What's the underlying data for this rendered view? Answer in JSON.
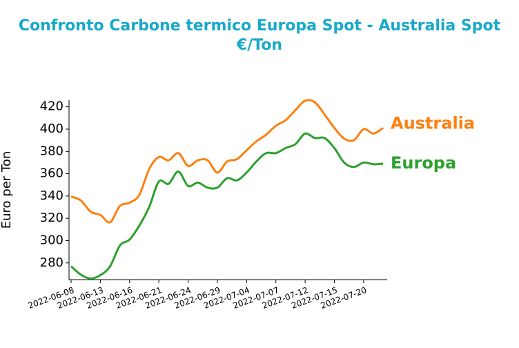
{
  "chart_data": {
    "type": "line",
    "title": "Confronto Carbone termico Europa Spot - Australia Spot",
    "subtitle": "€/Ton",
    "y_label": "Euro per Ton",
    "categories": [
      "2022-06-08",
      "2022-06-09",
      "2022-06-10",
      "2022-06-13",
      "2022-06-14",
      "2022-06-15",
      "2022-06-16",
      "2022-06-17",
      "2022-06-20",
      "2022-06-21",
      "2022-06-22",
      "2022-06-23",
      "2022-06-24",
      "2022-06-27",
      "2022-06-28",
      "2022-06-29",
      "2022-06-30",
      "2022-07-01",
      "2022-07-04",
      "2022-07-05",
      "2022-07-06",
      "2022-07-07",
      "2022-07-08",
      "2022-07-11",
      "2022-07-12",
      "2022-07-13",
      "2022-07-14",
      "2022-07-15",
      "2022-07-18",
      "2022-07-19",
      "2022-07-20",
      "2022-07-21",
      "2022-07-22"
    ],
    "xticks": [
      "2022-06-08",
      "2022-06-13",
      "2022-06-16",
      "2022-06-21",
      "2022-06-24",
      "2022-06-29",
      "2022-07-04",
      "2022-07-07",
      "2022-07-12",
      "2022-07-15",
      "2022-07-20"
    ],
    "series": [
      {
        "name": "Australia",
        "color": "#ff7f0e",
        "values": [
          339.5,
          336,
          326,
          323,
          316.5,
          331,
          334,
          341,
          364,
          375,
          372,
          378.5,
          367,
          372,
          372,
          361,
          371,
          373,
          381,
          389,
          395,
          403,
          408,
          417,
          425.5,
          424,
          413,
          401,
          391.5,
          390,
          400,
          396,
          401
        ]
      },
      {
        "name": "Europa",
        "color": "#2ca02c",
        "values": [
          277,
          269.5,
          266,
          269,
          277,
          295.5,
          301,
          313.5,
          330,
          353,
          351,
          362,
          349,
          352,
          347.5,
          347.5,
          356,
          354,
          361,
          371,
          378.5,
          378.5,
          383,
          386.5,
          396,
          392,
          392,
          383,
          370,
          366,
          370,
          368.5,
          369
        ]
      }
    ],
    "ylim": [
      265,
      426
    ],
    "yticks": [
      280,
      300,
      320,
      340,
      360,
      380,
      400,
      420
    ],
    "title_color": "#17a9c9"
  }
}
